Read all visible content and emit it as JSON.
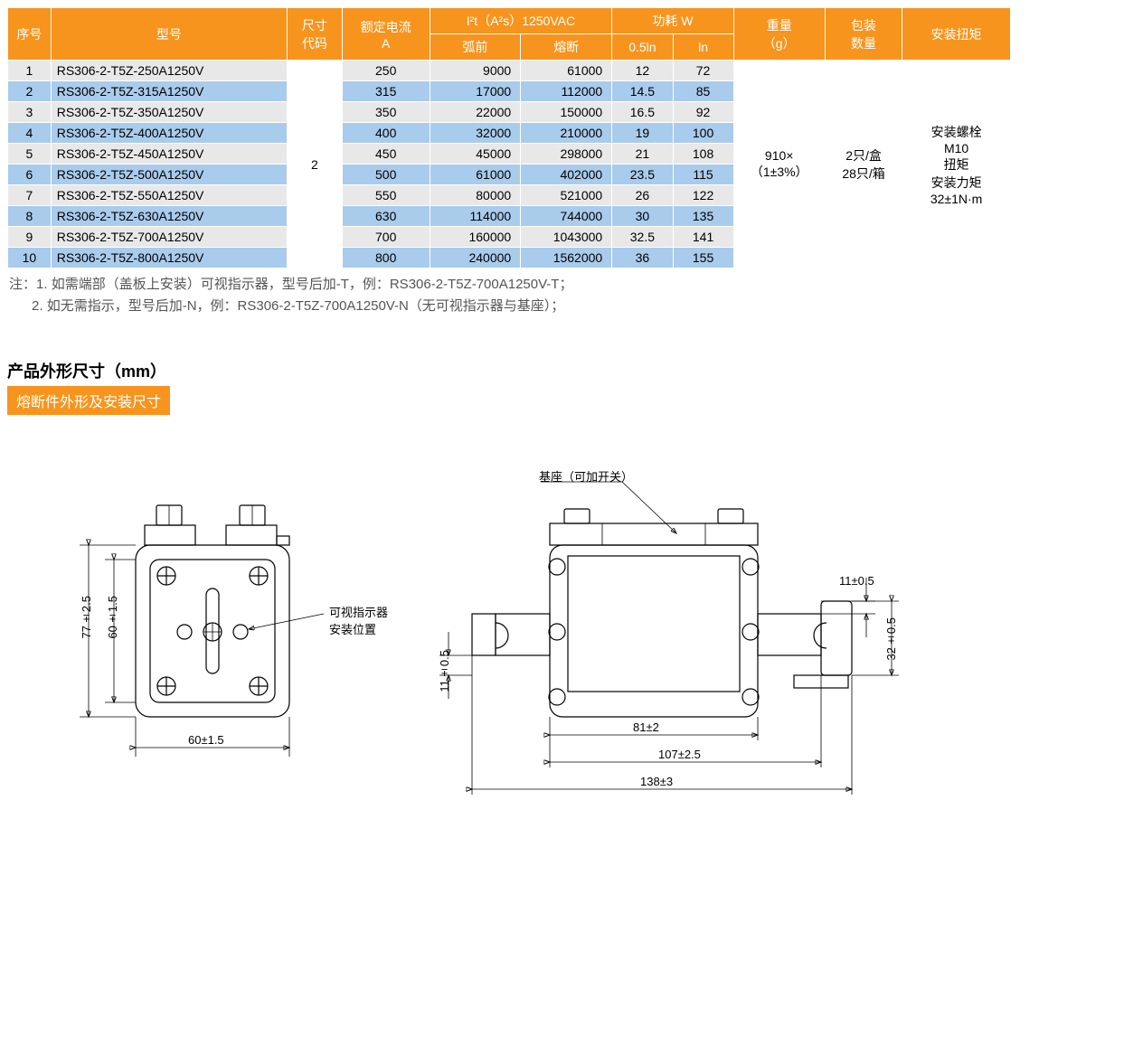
{
  "table": {
    "header": {
      "seq": "序号",
      "model": "型号",
      "size_code": "尺寸\n代码",
      "rated_current": "额定电流\nA",
      "i2t_group": "I²t（A²s）1250VAC",
      "i2t_pre": "弧前",
      "i2t_melt": "熔断",
      "power_group": "功耗 W",
      "power_05ln": "0.5ln",
      "power_ln": "ln",
      "weight": "重量\n（g）",
      "pack": "包装\n数量",
      "torque": "安装扭矩"
    },
    "size_code_value": "2",
    "weight_value": "910×\n（1±3%）",
    "pack_value": "2只/盒\n28只/箱",
    "torque_value": "安装螺栓\nM10\n扭矩\n安装力矩\n32±1N·m",
    "rows": [
      {
        "seq": "1",
        "model": "RS306-2-T5Z-250A1250V",
        "rated": "250",
        "pre": "9000",
        "melt": "61000",
        "p05": "12",
        "pln": "72"
      },
      {
        "seq": "2",
        "model": "RS306-2-T5Z-315A1250V",
        "rated": "315",
        "pre": "17000",
        "melt": "112000",
        "p05": "14.5",
        "pln": "85"
      },
      {
        "seq": "3",
        "model": "RS306-2-T5Z-350A1250V",
        "rated": "350",
        "pre": "22000",
        "melt": "150000",
        "p05": "16.5",
        "pln": "92"
      },
      {
        "seq": "4",
        "model": "RS306-2-T5Z-400A1250V",
        "rated": "400",
        "pre": "32000",
        "melt": "210000",
        "p05": "19",
        "pln": "100"
      },
      {
        "seq": "5",
        "model": "RS306-2-T5Z-450A1250V",
        "rated": "450",
        "pre": "45000",
        "melt": "298000",
        "p05": "21",
        "pln": "108"
      },
      {
        "seq": "6",
        "model": "RS306-2-T5Z-500A1250V",
        "rated": "500",
        "pre": "61000",
        "melt": "402000",
        "p05": "23.5",
        "pln": "115"
      },
      {
        "seq": "7",
        "model": "RS306-2-T5Z-550A1250V",
        "rated": "550",
        "pre": "80000",
        "melt": "521000",
        "p05": "26",
        "pln": "122"
      },
      {
        "seq": "8",
        "model": "RS306-2-T5Z-630A1250V",
        "rated": "630",
        "pre": "114000",
        "melt": "744000",
        "p05": "30",
        "pln": "135"
      },
      {
        "seq": "9",
        "model": "RS306-2-T5Z-700A1250V",
        "rated": "700",
        "pre": "160000",
        "melt": "1043000",
        "p05": "32.5",
        "pln": "141"
      },
      {
        "seq": "10",
        "model": "RS306-2-T5Z-800A1250V",
        "rated": "800",
        "pre": "240000",
        "melt": "1562000",
        "p05": "36",
        "pln": "155"
      }
    ]
  },
  "notes": {
    "prefix": "注：",
    "line1": "1. 如需端部（盖板上安装）可视指示器，型号后加-T，例：RS306-2-T5Z-700A1250V-T；",
    "line2": "2.  如无需指示，型号后加-N，例：RS306-2-T5Z-700A1250V-N（无可视指示器与基座）；"
  },
  "section": {
    "title": "产品外形尺寸（mm）",
    "sub": "熔断件外形及安装尺寸"
  },
  "diagram": {
    "front": {
      "indicator_label": "可视指示器\n安装位置",
      "dim_60_h": "60±1.5",
      "dim_60_v": "60±1.5",
      "dim_77_v": "77±2.5"
    },
    "side": {
      "base_label": "基座（可加开关）",
      "dim_11_v": "11±0.5",
      "dim_81": "81±2",
      "dim_107": "107±2.5",
      "dim_138": "138±3",
      "dim_11_top": "11±0.5",
      "dim_32_v": "32±0.5"
    },
    "colors": {
      "header_bg": "#f7941d",
      "row_odd": "#e8e8e8",
      "row_even": "#a9cbec",
      "text": "#000000",
      "note_text": "#555555"
    }
  }
}
